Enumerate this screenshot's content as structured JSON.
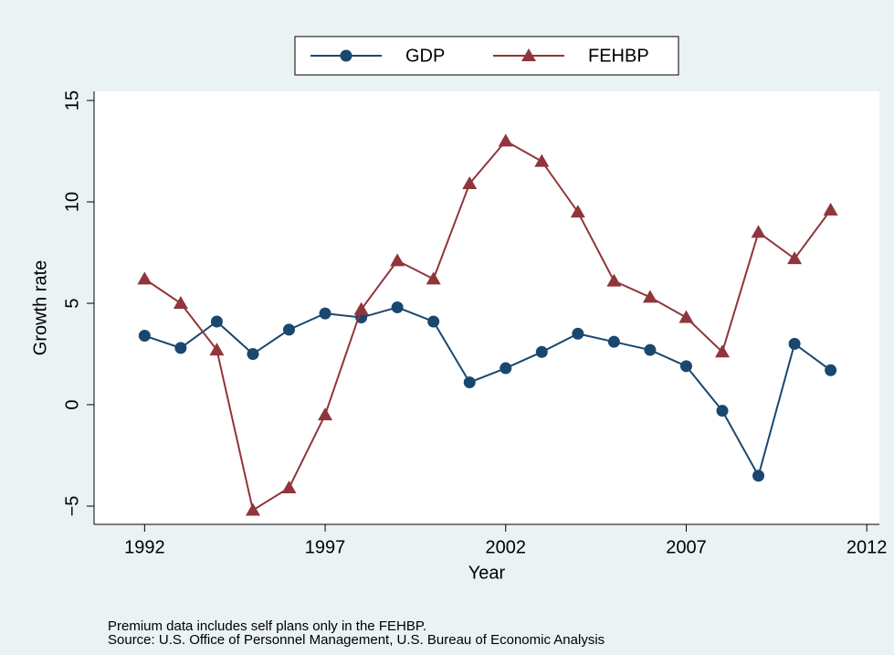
{
  "chart_data": {
    "type": "line",
    "x": [
      1992,
      1993,
      1994,
      1995,
      1996,
      1997,
      1998,
      1999,
      2000,
      2001,
      2002,
      2003,
      2004,
      2005,
      2006,
      2007,
      2008,
      2009,
      2010,
      2011
    ],
    "series": [
      {
        "name": "GDP",
        "color": "#1a476f",
        "marker": "circle",
        "values": [
          3.4,
          2.8,
          4.1,
          2.5,
          3.7,
          4.5,
          4.3,
          4.8,
          4.1,
          1.1,
          1.8,
          2.6,
          3.5,
          3.1,
          2.7,
          1.9,
          -0.3,
          -3.5,
          3.0,
          1.7
        ]
      },
      {
        "name": "FEHBP",
        "color": "#90353b",
        "marker": "triangle",
        "values": [
          6.2,
          5.0,
          2.7,
          -5.2,
          -4.1,
          -0.5,
          4.7,
          7.1,
          6.2,
          10.9,
          13.0,
          12.0,
          9.5,
          6.1,
          5.3,
          4.3,
          2.6,
          8.5,
          7.2,
          9.6
        ]
      }
    ],
    "xlabel": "Year",
    "ylabel": "Growth rate",
    "xlim": [
      1990.6,
      2012.35
    ],
    "ylim": [
      -5.9,
      15.45
    ],
    "xticks": [
      1992,
      1997,
      2002,
      2007,
      2012
    ],
    "yticks": [
      {
        "value": -5,
        "label": "−5"
      },
      0,
      5,
      10,
      15
    ],
    "notes": [
      "Premium data includes self plans only in the FEHBP.",
      "Source: U.S. Office of Personnel Management, U.S. Bureau of Economic Analysis"
    ],
    "grid": false
  }
}
